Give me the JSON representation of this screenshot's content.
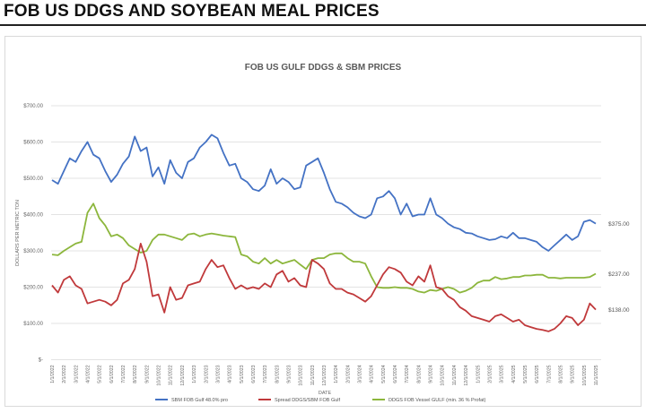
{
  "page_title": "FOB US DDGS AND SOYBEAN MEAL PRICES",
  "chart_data": {
    "type": "line",
    "title": "FOB US GULF DDGS & SBM PRICES",
    "xlabel": "DATE",
    "ylabel": "DOLLARS PER METRIC TON",
    "ylim": [
      0,
      700
    ],
    "y_ticks": [
      0,
      100,
      200,
      300,
      400,
      500,
      600,
      700
    ],
    "y_tick_labels": [
      "$-",
      "$100.00",
      "$200.00",
      "$300.00",
      "$400.00",
      "$500.00",
      "$600.00",
      "$700.00"
    ],
    "grid": true,
    "legend_position": "bottom",
    "x_tick_labels": [
      "1/1/2022",
      "2/1/2022",
      "3/1/2022",
      "4/1/2022",
      "5/1/2022",
      "6/1/2022",
      "7/1/2022",
      "8/1/2022",
      "9/1/2022",
      "10/1/2022",
      "11/1/2022",
      "12/1/2022",
      "1/1/2023",
      "2/1/2023",
      "3/1/2023",
      "4/1/2023",
      "5/1/2023",
      "6/1/2023",
      "7/1/2023",
      "8/1/2023",
      "9/1/2023",
      "10/1/2023",
      "11/1/2023",
      "12/1/2023",
      "1/1/2024",
      "2/1/2024",
      "3/1/2024",
      "4/1/2024",
      "5/1/2024",
      "6/1/2024",
      "7/1/2024",
      "8/1/2024",
      "9/1/2024",
      "10/1/2024",
      "11/1/2024",
      "12/1/2024",
      "1/1/2025",
      "2/1/2025",
      "3/1/2025",
      "4/1/2025",
      "5/1/2025",
      "6/1/2025",
      "7/1/2025",
      "8/1/2025",
      "9/1/2025",
      "10/1/2025",
      "11/1/2025"
    ],
    "points_per_month": 2,
    "series": [
      {
        "name": "SBM FOB Gulf 48.0% pro",
        "color": "#4472c4",
        "end_label": "$375.00",
        "values": [
          495,
          485,
          520,
          555,
          545,
          575,
          600,
          565,
          555,
          520,
          490,
          510,
          540,
          560,
          615,
          575,
          585,
          505,
          530,
          485,
          550,
          515,
          500,
          545,
          555,
          585,
          600,
          620,
          610,
          570,
          535,
          540,
          500,
          490,
          470,
          465,
          480,
          525,
          485,
          500,
          490,
          470,
          475,
          535,
          545,
          555,
          515,
          470,
          435,
          430,
          420,
          405,
          395,
          390,
          400,
          445,
          450,
          465,
          445,
          400,
          430,
          395,
          400,
          400,
          445,
          400,
          390,
          375,
          365,
          360,
          350,
          348,
          340,
          335,
          330,
          332,
          340,
          335,
          350,
          335,
          335,
          330,
          325,
          310,
          300,
          315,
          330,
          345,
          330,
          340,
          380,
          385,
          375
        ]
      },
      {
        "name": "Spread DDGS/SBM FOB Gulf",
        "color": "#c0393b",
        "end_label": "$138.00",
        "values": [
          205,
          185,
          220,
          230,
          205,
          195,
          155,
          160,
          165,
          160,
          150,
          165,
          210,
          220,
          250,
          320,
          270,
          175,
          180,
          130,
          200,
          165,
          170,
          205,
          210,
          215,
          250,
          275,
          255,
          260,
          225,
          195,
          205,
          195,
          200,
          195,
          210,
          200,
          235,
          245,
          215,
          225,
          205,
          200,
          275,
          265,
          250,
          210,
          195,
          195,
          185,
          180,
          170,
          160,
          175,
          205,
          235,
          255,
          250,
          240,
          215,
          205,
          230,
          215,
          260,
          200,
          195,
          175,
          165,
          145,
          135,
          120,
          115,
          110,
          105,
          120,
          125,
          115,
          105,
          110,
          95,
          90,
          85,
          82,
          78,
          85,
          100,
          120,
          115,
          95,
          110,
          155,
          138
        ]
      },
      {
        "name": "DDGS FOB Vessel GULF  (min. 36 % Profat)",
        "color": "#8cb63c",
        "end_label": "$237.00",
        "values": [
          290,
          288,
          300,
          310,
          320,
          325,
          405,
          430,
          390,
          370,
          340,
          345,
          335,
          315,
          305,
          295,
          300,
          330,
          345,
          345,
          340,
          335,
          330,
          345,
          348,
          340,
          345,
          348,
          345,
          342,
          340,
          338,
          290,
          285,
          270,
          265,
          280,
          265,
          275,
          265,
          270,
          275,
          262,
          250,
          275,
          280,
          280,
          290,
          293,
          293,
          280,
          270,
          270,
          265,
          230,
          200,
          198,
          198,
          200,
          198,
          198,
          195,
          188,
          185,
          192,
          190,
          195,
          200,
          195,
          185,
          190,
          198,
          212,
          218,
          218,
          228,
          222,
          224,
          228,
          228,
          232,
          232,
          234,
          234,
          226,
          226,
          224,
          226,
          226,
          226,
          226,
          228,
          237
        ]
      }
    ]
  }
}
